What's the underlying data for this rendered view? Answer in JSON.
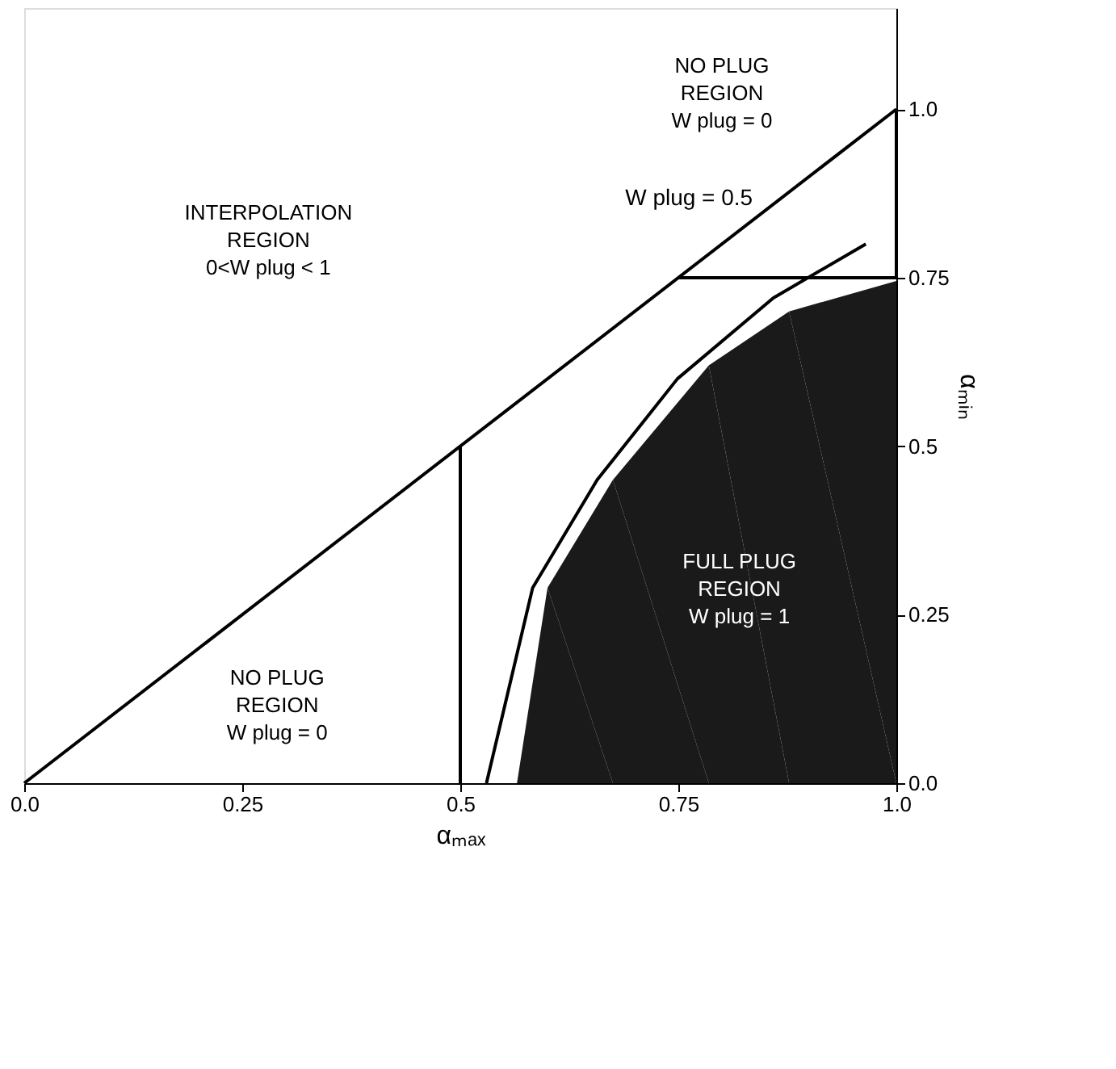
{
  "chart_data": {
    "type": "line",
    "xlabel": "αₘₐₓ",
    "ylabel": "αₘᵢₙ",
    "xlim": [
      0,
      1
    ],
    "ylim": [
      0,
      1.15
    ],
    "xticks": [
      {
        "value": 0,
        "label": "0.0"
      },
      0.25,
      0.5,
      0.75,
      {
        "value": 1,
        "label": "1.0"
      }
    ],
    "yticks": [
      {
        "value": 0,
        "label": "0.0"
      },
      0.25,
      0.5,
      0.75,
      {
        "value": 1,
        "label": "1.0"
      }
    ],
    "grid": false,
    "series": [
      {
        "type": "area",
        "color": "#1a1a1a",
        "x": [
          0.565,
          0.6,
          0.675,
          0.785,
          0.877,
          1.0
        ],
        "values": [
          0,
          0.29,
          0.45,
          0.62,
          0.7,
          0.745
        ]
      },
      {
        "color": "#000000",
        "x": [
          0,
          1
        ],
        "values": [
          0,
          1
        ]
      },
      {
        "color": "#000000",
        "x": [
          0.5,
          0.5
        ],
        "values": [
          0,
          0.5
        ]
      },
      {
        "color": "#000000",
        "x": [
          0.75,
          1,
          1
        ],
        "values": [
          0.75,
          0.75,
          1
        ]
      },
      {
        "name": "W plug = 0.5",
        "color": "#000000",
        "x": [
          0.53,
          0.583,
          0.657,
          0.749,
          0.859,
          0.965
        ],
        "values": [
          0,
          0.29,
          0.45,
          0.6,
          0.72,
          0.8
        ]
      }
    ],
    "annotations": [
      "INTERPOLATION\nREGION\n0<W plug < 1",
      "NO PLUG\nREGION\nW plug = 0",
      "NO PLUG\nREGION\nW plug = 0",
      "FULL PLUG\nREGION\nW plug = 1"
    ]
  }
}
